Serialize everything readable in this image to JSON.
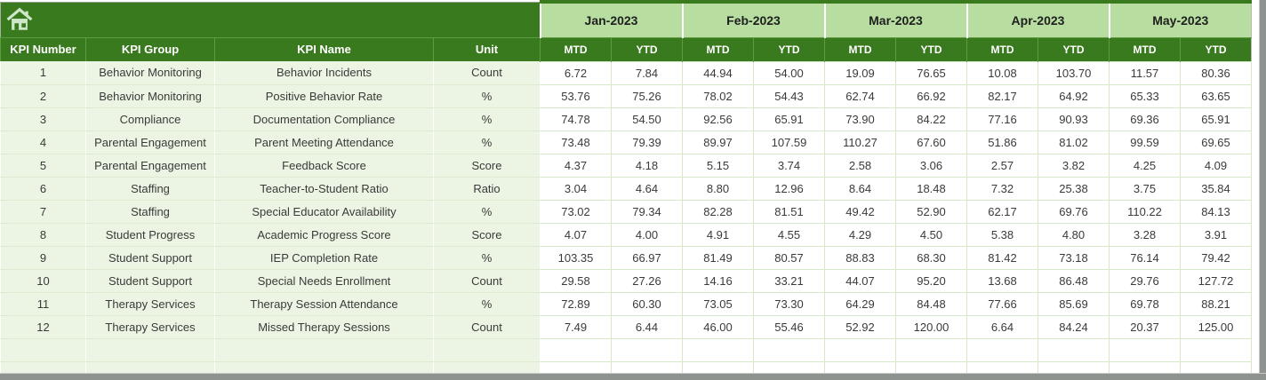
{
  "colors": {
    "header_dark_green": "#3A7A1F",
    "month_band_green": "#B7DDA0",
    "row_label_pale_green": "#ECF5E3",
    "gridline_green": "#D7E8C8",
    "header_text": "#ffffff",
    "body_text": "#3a3a3a",
    "window_edge_gray": "#8f9390"
  },
  "table": {
    "corner_icon": "home-icon",
    "column_headers": [
      "KPI Number",
      "KPI Group",
      "KPI Name",
      "Unit"
    ],
    "months": [
      "Jan-2023",
      "Feb-2023",
      "Mar-2023",
      "Apr-2023",
      "May-2023"
    ],
    "period_headers": [
      "MTD",
      "YTD"
    ],
    "rows": [
      {
        "number": "1",
        "group": "Behavior Monitoring",
        "name": "Behavior Incidents",
        "unit": "Count",
        "values": [
          "6.72",
          "7.84",
          "44.94",
          "54.00",
          "19.09",
          "76.65",
          "10.08",
          "103.70",
          "11.57",
          "80.36"
        ]
      },
      {
        "number": "2",
        "group": "Behavior Monitoring",
        "name": "Positive Behavior Rate",
        "unit": "%",
        "values": [
          "53.76",
          "75.26",
          "78.02",
          "54.43",
          "62.74",
          "66.92",
          "82.17",
          "64.92",
          "65.33",
          "63.65"
        ]
      },
      {
        "number": "3",
        "group": "Compliance",
        "name": "Documentation Compliance",
        "unit": "%",
        "values": [
          "74.78",
          "54.50",
          "92.56",
          "65.91",
          "73.90",
          "84.22",
          "77.16",
          "90.93",
          "69.36",
          "65.91"
        ]
      },
      {
        "number": "4",
        "group": "Parental Engagement",
        "name": "Parent Meeting Attendance",
        "unit": "%",
        "values": [
          "73.48",
          "79.39",
          "89.97",
          "107.59",
          "110.27",
          "67.60",
          "51.86",
          "81.02",
          "99.59",
          "69.65"
        ]
      },
      {
        "number": "5",
        "group": "Parental Engagement",
        "name": "Feedback Score",
        "unit": "Score",
        "values": [
          "4.37",
          "4.18",
          "5.15",
          "3.74",
          "2.58",
          "3.06",
          "2.57",
          "3.82",
          "4.25",
          "4.09"
        ]
      },
      {
        "number": "6",
        "group": "Staffing",
        "name": "Teacher-to-Student Ratio",
        "unit": "Ratio",
        "values": [
          "3.04",
          "4.64",
          "8.80",
          "12.96",
          "8.64",
          "18.48",
          "7.32",
          "25.38",
          "3.75",
          "35.84"
        ]
      },
      {
        "number": "7",
        "group": "Staffing",
        "name": "Special Educator Availability",
        "unit": "%",
        "values": [
          "73.02",
          "79.34",
          "82.28",
          "81.51",
          "49.42",
          "52.90",
          "62.17",
          "69.76",
          "110.22",
          "84.13"
        ]
      },
      {
        "number": "8",
        "group": "Student Progress",
        "name": "Academic Progress Score",
        "unit": "Score",
        "values": [
          "4.07",
          "4.00",
          "4.91",
          "4.55",
          "4.29",
          "4.50",
          "5.38",
          "4.80",
          "3.28",
          "3.91"
        ]
      },
      {
        "number": "9",
        "group": "Student Support",
        "name": "IEP Completion Rate",
        "unit": "%",
        "values": [
          "103.35",
          "66.97",
          "81.49",
          "80.57",
          "88.83",
          "68.30",
          "81.42",
          "73.18",
          "76.14",
          "79.42"
        ]
      },
      {
        "number": "10",
        "group": "Student Support",
        "name": "Special Needs Enrollment",
        "unit": "Count",
        "values": [
          "29.58",
          "27.26",
          "14.16",
          "33.21",
          "44.07",
          "95.20",
          "13.68",
          "86.48",
          "29.76",
          "127.72"
        ]
      },
      {
        "number": "11",
        "group": "Therapy Services",
        "name": "Therapy Session Attendance",
        "unit": "%",
        "values": [
          "72.89",
          "60.30",
          "73.05",
          "73.30",
          "64.29",
          "84.48",
          "77.66",
          "85.69",
          "69.78",
          "88.21"
        ]
      },
      {
        "number": "12",
        "group": "Therapy Services",
        "name": "Missed Therapy Sessions",
        "unit": "Count",
        "values": [
          "7.49",
          "6.44",
          "46.00",
          "55.46",
          "52.92",
          "120.00",
          "6.64",
          "84.24",
          "20.37",
          "125.00"
        ]
      }
    ],
    "empty_rows": 2
  }
}
